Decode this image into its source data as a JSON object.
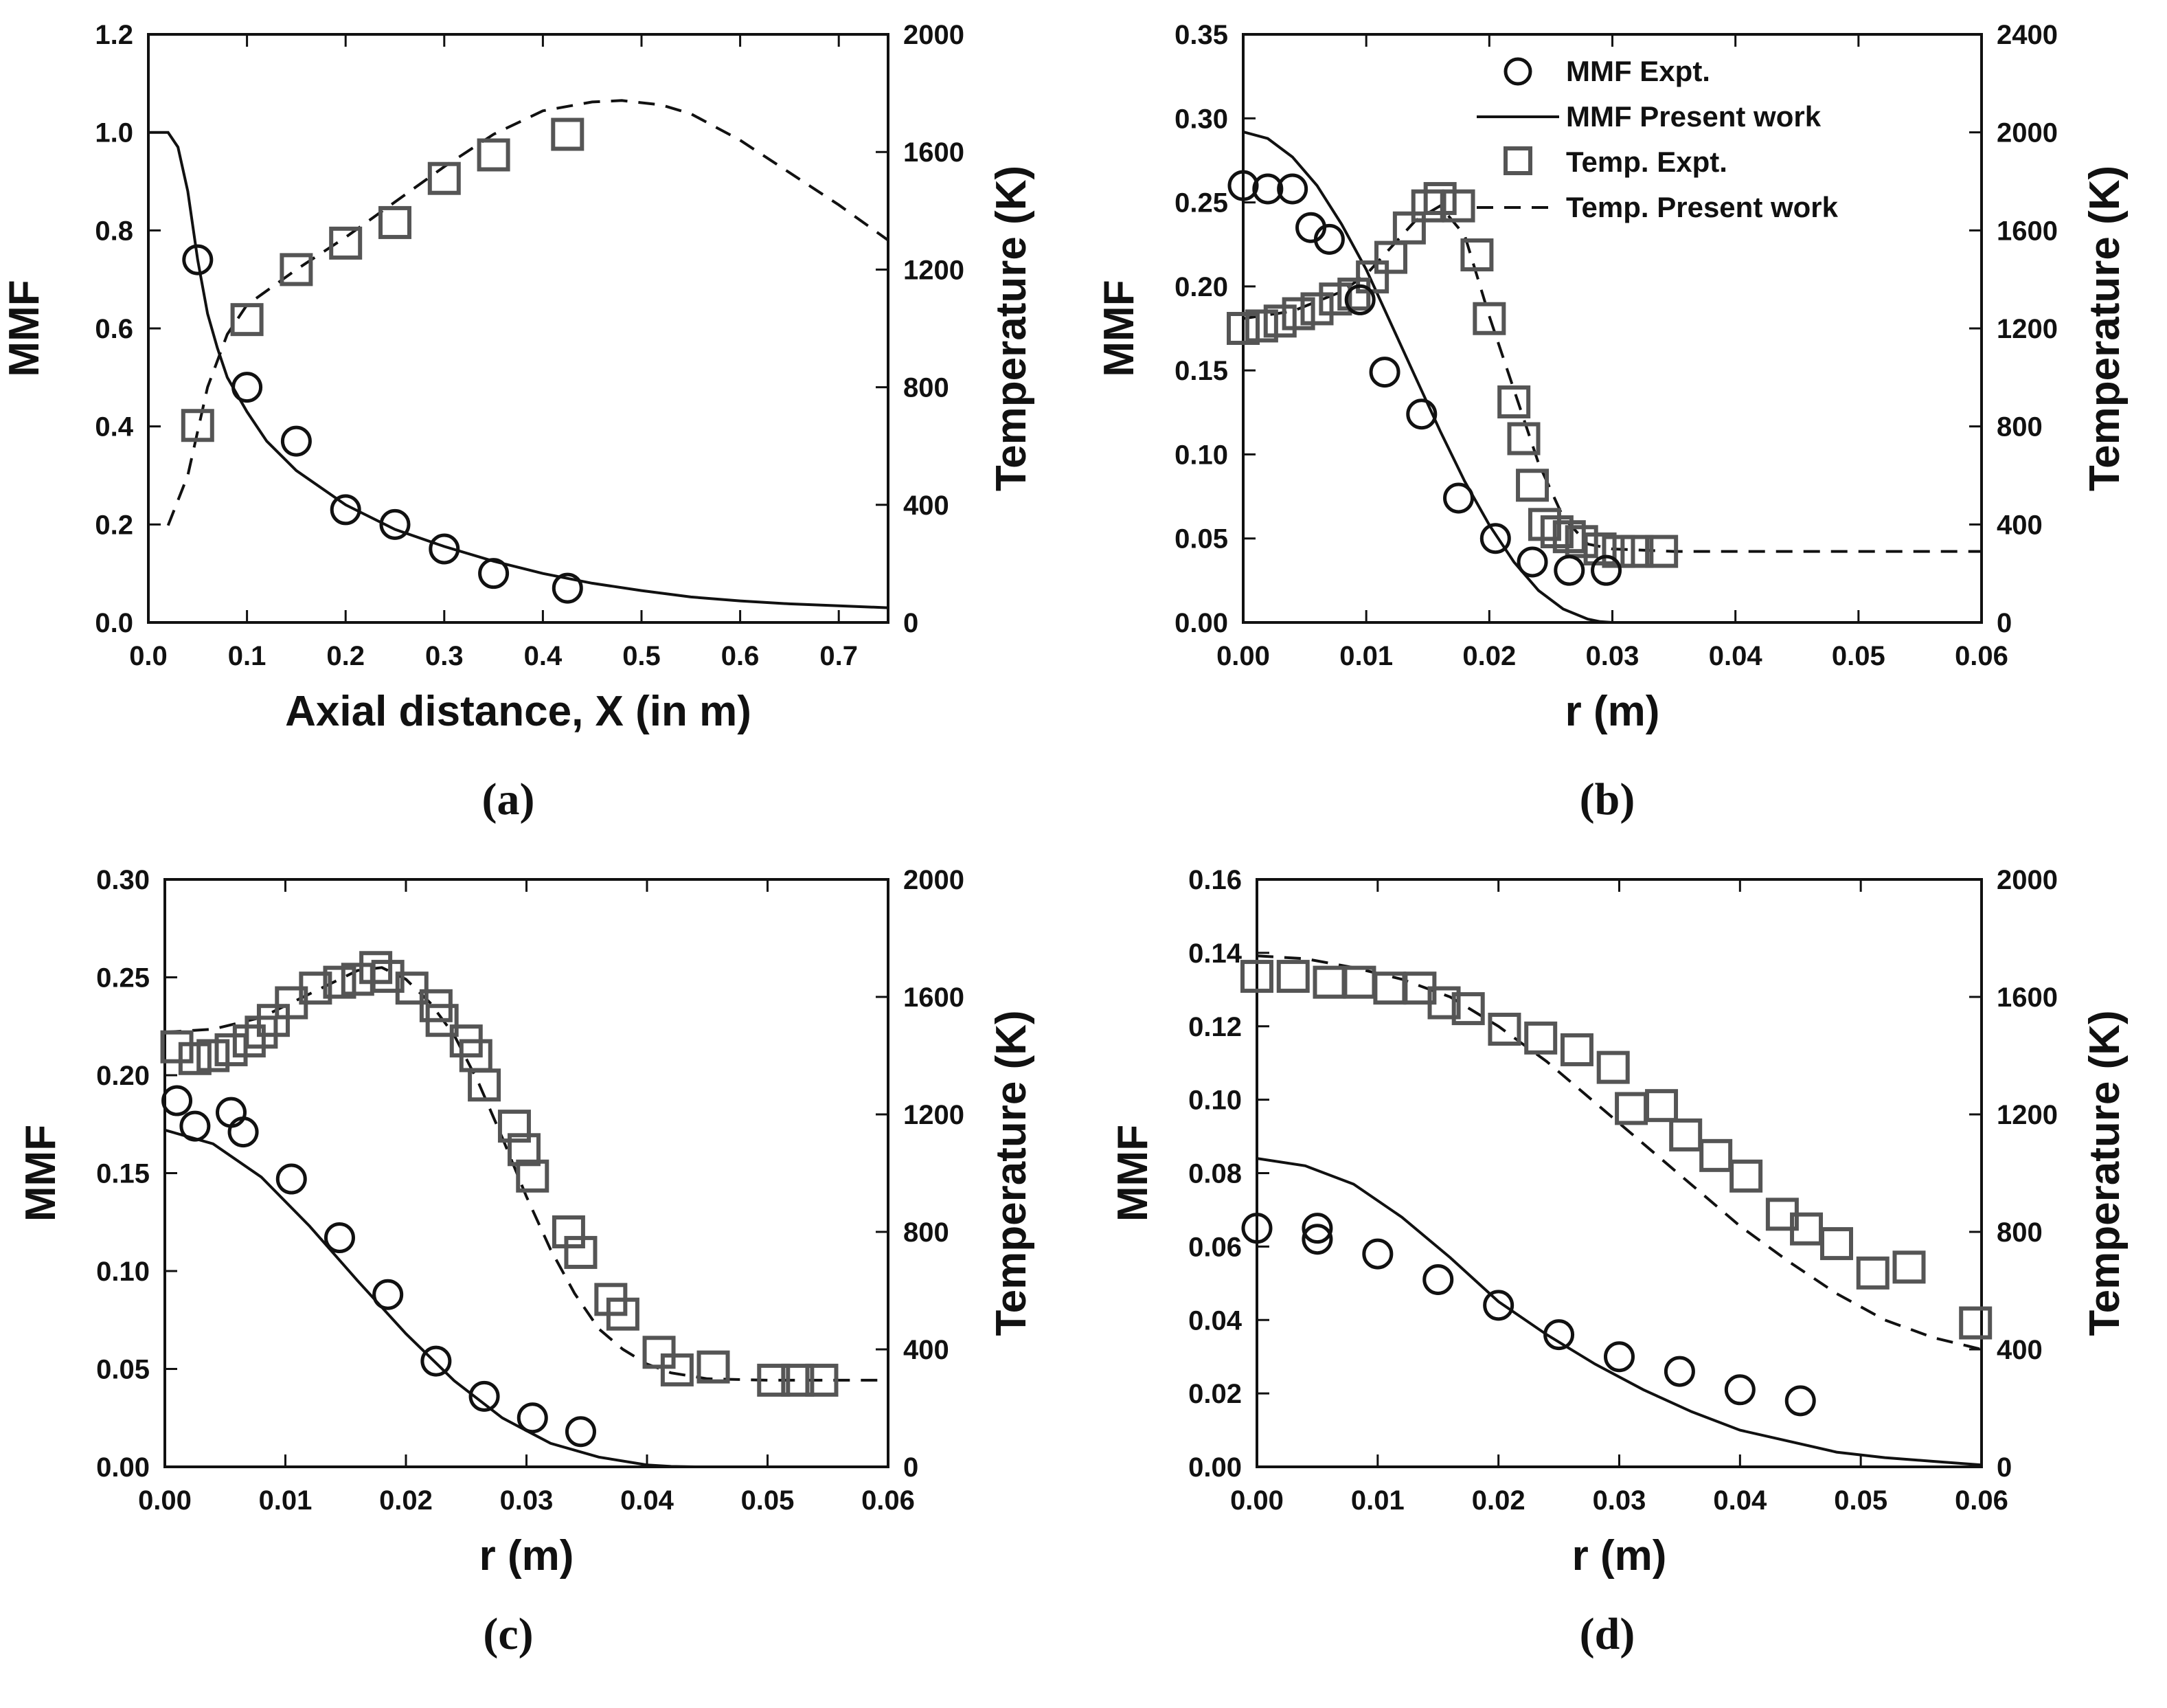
{
  "figure": {
    "captions": [
      "(a)",
      "(b)",
      "(c)",
      "(d)"
    ]
  },
  "colors": {
    "axis": "#111111",
    "mmf_marker": "#111111",
    "temp_marker": "#555555",
    "line": "#111111"
  },
  "legend": {
    "mmf_expt": "MMF Expt.",
    "mmf_model": "MMF Present work",
    "temp_expt": "Temp. Expt.",
    "temp_model": "Temp. Present work"
  },
  "chart_data": [
    {
      "id": "a",
      "type": "line",
      "title": "",
      "caption": "(a)",
      "xlabel": "Axial distance, X (in m)",
      "ylabel": "MMF",
      "y2label": "Temperature (K)",
      "xlim": [
        0,
        0.75
      ],
      "ylim": [
        0,
        1.2
      ],
      "y2lim": [
        0,
        2000
      ],
      "xticks": [
        "0.0",
        "0.1",
        "0.2",
        "0.3",
        "0.4",
        "0.5",
        "0.6",
        "0.7"
      ],
      "yticks": [
        "0.0",
        "0.2",
        "0.4",
        "0.6",
        "0.8",
        "1.0",
        "1.2"
      ],
      "y2ticks": [
        "0",
        "400",
        "800",
        "1200",
        "1600",
        "2000"
      ],
      "mmf_expt": {
        "x": [
          0.05,
          0.1,
          0.15,
          0.2,
          0.25,
          0.3,
          0.35,
          0.425
        ],
        "y": [
          0.74,
          0.48,
          0.37,
          0.23,
          0.2,
          0.15,
          0.1,
          0.07
        ]
      },
      "mmf_model": {
        "x": [
          0,
          0.02,
          0.03,
          0.04,
          0.05,
          0.06,
          0.07,
          0.08,
          0.1,
          0.12,
          0.15,
          0.2,
          0.25,
          0.3,
          0.35,
          0.4,
          0.45,
          0.5,
          0.55,
          0.6,
          0.65,
          0.7,
          0.75
        ],
        "y": [
          1.0,
          1.0,
          0.97,
          0.88,
          0.74,
          0.63,
          0.56,
          0.5,
          0.43,
          0.37,
          0.31,
          0.24,
          0.19,
          0.155,
          0.125,
          0.1,
          0.08,
          0.065,
          0.052,
          0.044,
          0.038,
          0.034,
          0.03
        ]
      },
      "temp_expt": {
        "x": [
          0.05,
          0.1,
          0.15,
          0.2,
          0.25,
          0.3,
          0.35,
          0.425
        ],
        "y": [
          670,
          1030,
          1200,
          1290,
          1360,
          1510,
          1590,
          1660
        ]
      },
      "temp_model": {
        "x": [
          0.02,
          0.04,
          0.06,
          0.08,
          0.1,
          0.15,
          0.2,
          0.25,
          0.3,
          0.35,
          0.4,
          0.45,
          0.48,
          0.52,
          0.55,
          0.6,
          0.65,
          0.7,
          0.75
        ],
        "y": [
          330,
          500,
          800,
          980,
          1080,
          1200,
          1310,
          1430,
          1550,
          1660,
          1740,
          1770,
          1775,
          1760,
          1730,
          1640,
          1530,
          1420,
          1300
        ]
      }
    },
    {
      "id": "b",
      "type": "line",
      "title": "",
      "caption": "(b)",
      "xlabel": "r (m)",
      "ylabel": "MMF",
      "y2label": "Temperature (K)",
      "xlim": [
        0,
        0.06
      ],
      "ylim": [
        0,
        0.35
      ],
      "y2lim": [
        0,
        2400
      ],
      "xticks": [
        "0.00",
        "0.01",
        "0.02",
        "0.03",
        "0.04",
        "0.05",
        "0.06"
      ],
      "yticks": [
        "0.00",
        "0.05",
        "0.10",
        "0.15",
        "0.20",
        "0.25",
        "0.30",
        "0.35"
      ],
      "y2ticks": [
        "0",
        "400",
        "800",
        "1200",
        "1600",
        "2000",
        "2400"
      ],
      "legend_position": "top-right",
      "mmf_expt": {
        "x": [
          0.0,
          0.002,
          0.004,
          0.0055,
          0.007,
          0.0095,
          0.0115,
          0.0145,
          0.0175,
          0.0205,
          0.0235,
          0.0265,
          0.0295
        ],
        "y": [
          0.26,
          0.258,
          0.258,
          0.235,
          0.228,
          0.192,
          0.149,
          0.124,
          0.074,
          0.05,
          0.036,
          0.031,
          0.031
        ]
      },
      "mmf_model": {
        "x": [
          0,
          0.002,
          0.004,
          0.006,
          0.008,
          0.01,
          0.012,
          0.014,
          0.016,
          0.018,
          0.02,
          0.022,
          0.024,
          0.026,
          0.028,
          0.029,
          0.03,
          0.035,
          0.04,
          0.05,
          0.06
        ],
        "y": [
          0.292,
          0.288,
          0.277,
          0.26,
          0.237,
          0.21,
          0.178,
          0.146,
          0.114,
          0.084,
          0.058,
          0.036,
          0.019,
          0.008,
          0.002,
          0.0005,
          0,
          0,
          0,
          0,
          0
        ]
      },
      "temp_expt": {
        "x": [
          0.0,
          0.0015,
          0.003,
          0.0045,
          0.006,
          0.0075,
          0.009,
          0.0105,
          0.012,
          0.0135,
          0.015,
          0.016,
          0.0175,
          0.019,
          0.02,
          0.022,
          0.0228,
          0.0235,
          0.0245,
          0.0255,
          0.0265,
          0.0275,
          0.029,
          0.0305,
          0.032,
          0.034
        ],
        "y": [
          1200,
          1210,
          1230,
          1260,
          1280,
          1320,
          1340,
          1410,
          1490,
          1610,
          1700,
          1730,
          1700,
          1500,
          1240,
          900,
          750,
          560,
          400,
          370,
          350,
          330,
          300,
          290,
          290,
          290
        ]
      },
      "temp_model": {
        "x": [
          0,
          0.004,
          0.008,
          0.01,
          0.012,
          0.014,
          0.016,
          0.018,
          0.02,
          0.022,
          0.024,
          0.026,
          0.028,
          0.03,
          0.035,
          0.04,
          0.05,
          0.06
        ],
        "y": [
          1240,
          1270,
          1350,
          1420,
          1530,
          1640,
          1700,
          1580,
          1250,
          950,
          650,
          430,
          320,
          300,
          290,
          290,
          290,
          290
        ]
      }
    },
    {
      "id": "c",
      "type": "line",
      "title": "",
      "caption": "(c)",
      "xlabel": "r (m)",
      "ylabel": "MMF",
      "y2label": "Temperature (K)",
      "xlim": [
        0,
        0.06
      ],
      "ylim": [
        0,
        0.3
      ],
      "y2lim": [
        0,
        2000
      ],
      "xticks": [
        "0.00",
        "0.01",
        "0.02",
        "0.03",
        "0.04",
        "0.05",
        "0.06"
      ],
      "yticks": [
        "0.00",
        "0.05",
        "0.10",
        "0.15",
        "0.20",
        "0.25",
        "0.30"
      ],
      "y2ticks": [
        "0",
        "400",
        "800",
        "1200",
        "1600",
        "2000"
      ],
      "mmf_expt": {
        "x": [
          0.001,
          0.0025,
          0.0055,
          0.0065,
          0.0105,
          0.0145,
          0.0185,
          0.0225,
          0.0265,
          0.0305,
          0.0345
        ],
        "y": [
          0.187,
          0.174,
          0.181,
          0.171,
          0.147,
          0.117,
          0.088,
          0.054,
          0.036,
          0.025,
          0.018
        ]
      },
      "mmf_model": {
        "x": [
          0,
          0.004,
          0.008,
          0.012,
          0.016,
          0.02,
          0.024,
          0.028,
          0.032,
          0.036,
          0.04,
          0.042,
          0.044,
          0.05,
          0.06
        ],
        "y": [
          0.172,
          0.165,
          0.148,
          0.123,
          0.095,
          0.068,
          0.044,
          0.025,
          0.012,
          0.005,
          0.001,
          0.0002,
          0,
          0,
          0
        ]
      },
      "temp_expt": {
        "x": [
          0.001,
          0.0025,
          0.004,
          0.0055,
          0.007,
          0.008,
          0.009,
          0.0105,
          0.0125,
          0.0145,
          0.016,
          0.0175,
          0.0185,
          0.0205,
          0.0225,
          0.023,
          0.025,
          0.0258,
          0.0265,
          0.029,
          0.0298,
          0.0305,
          0.0335,
          0.0345,
          0.037,
          0.038,
          0.041,
          0.0425,
          0.0455,
          0.0505,
          0.0525,
          0.0545
        ],
        "y": [
          1430,
          1390,
          1400,
          1420,
          1450,
          1480,
          1520,
          1580,
          1630,
          1650,
          1660,
          1700,
          1670,
          1630,
          1570,
          1520,
          1450,
          1400,
          1300,
          1160,
          1080,
          990,
          800,
          730,
          570,
          520,
          390,
          330,
          340,
          295,
          295,
          295
        ]
      },
      "temp_model": {
        "x": [
          0,
          0.004,
          0.008,
          0.012,
          0.016,
          0.018,
          0.02,
          0.022,
          0.024,
          0.026,
          0.028,
          0.03,
          0.032,
          0.034,
          0.036,
          0.038,
          0.04,
          0.042,
          0.045,
          0.05,
          0.055,
          0.06
        ],
        "y": [
          1480,
          1490,
          1530,
          1610,
          1690,
          1700,
          1660,
          1580,
          1470,
          1310,
          1120,
          920,
          740,
          590,
          470,
          400,
          350,
          320,
          300,
          295,
          295,
          295
        ]
      }
    },
    {
      "id": "d",
      "type": "line",
      "title": "",
      "caption": "(d)",
      "xlabel": "r (m)",
      "ylabel": "MMF",
      "y2label": "Temperature (K)",
      "xlim": [
        0,
        0.06
      ],
      "ylim": [
        0,
        0.16
      ],
      "y2lim": [
        0,
        2000
      ],
      "xticks": [
        "0.00",
        "0.01",
        "0.02",
        "0.03",
        "0.04",
        "0.05",
        "0.06"
      ],
      "yticks": [
        "0.00",
        "0.02",
        "0.04",
        "0.06",
        "0.08",
        "0.10",
        "0.12",
        "0.14",
        "0.16"
      ],
      "y2ticks": [
        "0",
        "400",
        "800",
        "1200",
        "1600",
        "2000"
      ],
      "mmf_expt": {
        "x": [
          0.0,
          0.005,
          0.005,
          0.01,
          0.015,
          0.02,
          0.025,
          0.03,
          0.035,
          0.04,
          0.045
        ],
        "y": [
          0.065,
          0.065,
          0.062,
          0.058,
          0.051,
          0.044,
          0.036,
          0.03,
          0.026,
          0.021,
          0.018
        ]
      },
      "mmf_model": {
        "x": [
          0,
          0.004,
          0.008,
          0.012,
          0.016,
          0.02,
          0.024,
          0.028,
          0.032,
          0.036,
          0.04,
          0.044,
          0.048,
          0.052,
          0.056,
          0.06
        ],
        "y": [
          0.084,
          0.082,
          0.077,
          0.068,
          0.057,
          0.045,
          0.036,
          0.028,
          0.021,
          0.015,
          0.01,
          0.007,
          0.004,
          0.0025,
          0.0015,
          0.0005
        ]
      },
      "temp_expt": {
        "x": [
          0.0,
          0.003,
          0.006,
          0.0085,
          0.011,
          0.0135,
          0.0155,
          0.0175,
          0.0205,
          0.0235,
          0.0265,
          0.0295,
          0.031,
          0.0335,
          0.0355,
          0.038,
          0.0405,
          0.0435,
          0.0455,
          0.048,
          0.051,
          0.054,
          0.0595
        ],
        "y": [
          1670,
          1670,
          1650,
          1650,
          1630,
          1630,
          1580,
          1560,
          1490,
          1460,
          1420,
          1360,
          1220,
          1230,
          1130,
          1060,
          990,
          860,
          810,
          760,
          660,
          680,
          490
        ]
      },
      "temp_model": {
        "x": [
          0,
          0.004,
          0.008,
          0.012,
          0.016,
          0.02,
          0.024,
          0.028,
          0.032,
          0.036,
          0.04,
          0.044,
          0.048,
          0.052,
          0.056,
          0.06
        ],
        "y": [
          1740,
          1730,
          1700,
          1660,
          1600,
          1500,
          1380,
          1240,
          1100,
          960,
          820,
          700,
          590,
          500,
          440,
          400
        ]
      }
    }
  ]
}
